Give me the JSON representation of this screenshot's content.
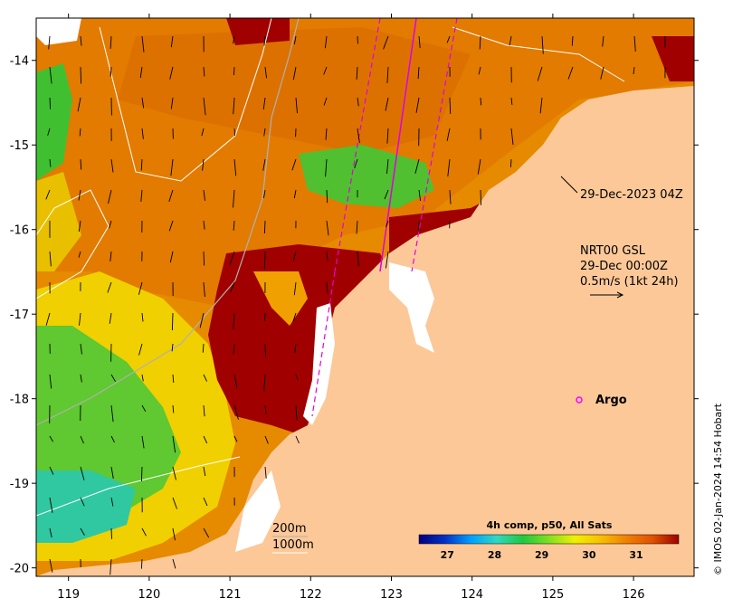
{
  "map": {
    "lon_range": [
      118.6,
      126.75
    ],
    "lat_range": [
      -20.1,
      -13.5
    ],
    "x_ticks": [
      119,
      120,
      121,
      122,
      123,
      124,
      125,
      126
    ],
    "y_ticks": [
      -14,
      -15,
      -16,
      -17,
      -18,
      -19,
      -20
    ]
  },
  "annotations": {
    "track_time": "29-Dec-2023 04Z",
    "current_source": "NRT00 GSL",
    "current_time": "29-Dec 00:00Z",
    "current_scale": "0.5m/s (1kt 24h)",
    "argo_label": "Argo",
    "contour_200": "200m",
    "contour_1000": "1000m"
  },
  "colorbar": {
    "title": "4h comp, p50, All Sats",
    "ticks": [
      "27",
      "28",
      "29",
      "30",
      "31"
    ],
    "range": [
      26.4,
      31.9
    ],
    "colors": [
      "#00007f",
      "#0030c8",
      "#00a0ff",
      "#30d8c0",
      "#20c840",
      "#80e020",
      "#f0f000",
      "#f8c000",
      "#f08000",
      "#e05000",
      "#a00000"
    ]
  },
  "credit": "© IMOS 02-Jan-2024 14:54 Hobart",
  "colors": {
    "land": "#fcc898",
    "warm": "#d07000",
    "hot": "#a00000",
    "cool": "#20c040",
    "argo": "#ff00ff",
    "track": "#e000e0"
  }
}
